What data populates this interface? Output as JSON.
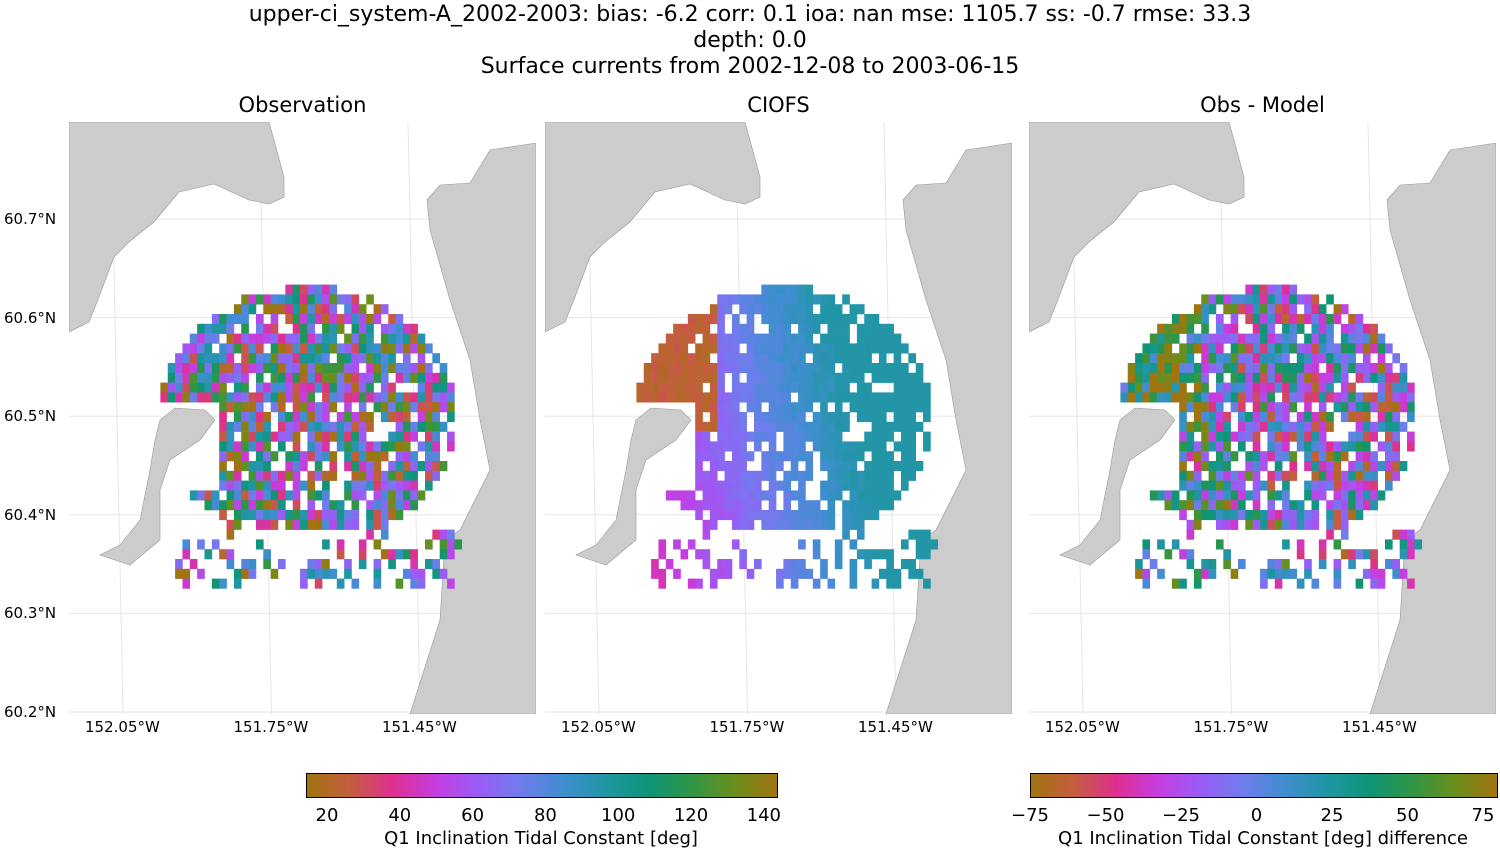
{
  "title": {
    "line1": "upper-ci_system-A_2002-2003: bias: -6.2  corr: 0.1  ioa: nan  mse: 1105.7  ss: -0.7  rmse: 33.3",
    "line2": "depth: 0.0",
    "line3": "Surface currents from 2002-12-08 to 2003-06-15"
  },
  "chart_data": {
    "type": "heatmap",
    "panels": [
      {
        "title": "Observation"
      },
      {
        "title": "CIOFS"
      },
      {
        "title": "Obs - Model"
      }
    ],
    "lat_ticks": [
      "60.7°N",
      "60.6°N",
      "60.5°N",
      "60.4°N",
      "60.3°N",
      "60.2°N"
    ],
    "lon_ticks": [
      "152.05°W",
      "151.75°W",
      "151.45°W"
    ],
    "grid": true,
    "land_color": "#cccccc",
    "colorbars": [
      {
        "label": "Q1 Inclination Tidal Constant [deg]",
        "range": [
          14,
          143
        ],
        "ticks": [
          "20",
          "40",
          "60",
          "80",
          "100",
          "120",
          "140"
        ]
      },
      {
        "label": "Q1 Inclination Tidal Constant [deg] difference",
        "range": [
          -78,
          78
        ],
        "ticks": [
          "−75",
          "−50",
          "−25",
          "0",
          "25",
          "50",
          "75"
        ]
      }
    ],
    "colormap": [
      "#a0740f",
      "#c45e3e",
      "#df2f8f",
      "#c63de0",
      "#9a5cf5",
      "#6f7cec",
      "#3f8ed0",
      "#1f96a3",
      "#0f9477",
      "#2f9645",
      "#6a8f1c",
      "#a0740f"
    ]
  }
}
